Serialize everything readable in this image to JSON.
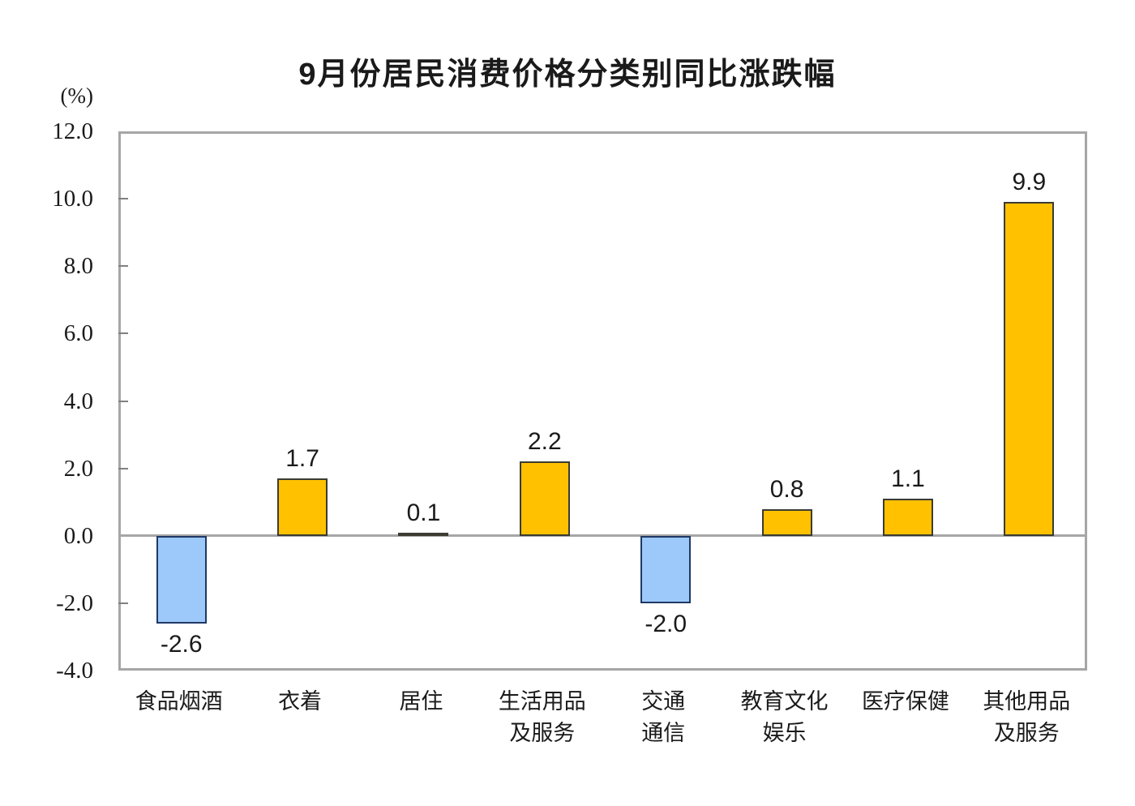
{
  "chart_data": {
    "type": "bar",
    "title": "9月份居民消费价格分类别同比涨跌幅",
    "unit_label": "(%)",
    "categories": [
      "食品烟酒",
      "衣着",
      "居住",
      "生活用品\n及服务",
      "交通\n通信",
      "教育文化\n娱乐",
      "医疗保健",
      "其他用品\n及服务"
    ],
    "values": [
      -2.6,
      1.7,
      0.1,
      2.2,
      -2.0,
      0.8,
      1.1,
      9.9
    ],
    "value_labels": [
      "-2.6",
      "1.7",
      "0.1",
      "2.2",
      "-2.0",
      "0.8",
      "1.1",
      "9.9"
    ],
    "ylim": [
      -4.0,
      12.0
    ],
    "ytick_values": [
      12,
      10,
      8,
      6,
      4,
      2,
      0,
      -2,
      -4
    ],
    "ytick_labels": [
      "12.0",
      "10.0",
      "8.0",
      "6.0",
      "4.0",
      "2.0",
      "0.0",
      "-2.0",
      "-4.0"
    ],
    "grid": "off",
    "legend": "none",
    "xlabel": "",
    "ylabel": "(%)",
    "colors": {
      "positive_fill": "#FFC100",
      "positive_border": "#3B3B33",
      "negative_fill": "#9CC9FA",
      "negative_border": "#1F3864",
      "frame": "#A6A6A6",
      "zero_line": "#A6A6A6",
      "tick": "#808080",
      "text": "#1A1A1A"
    }
  }
}
